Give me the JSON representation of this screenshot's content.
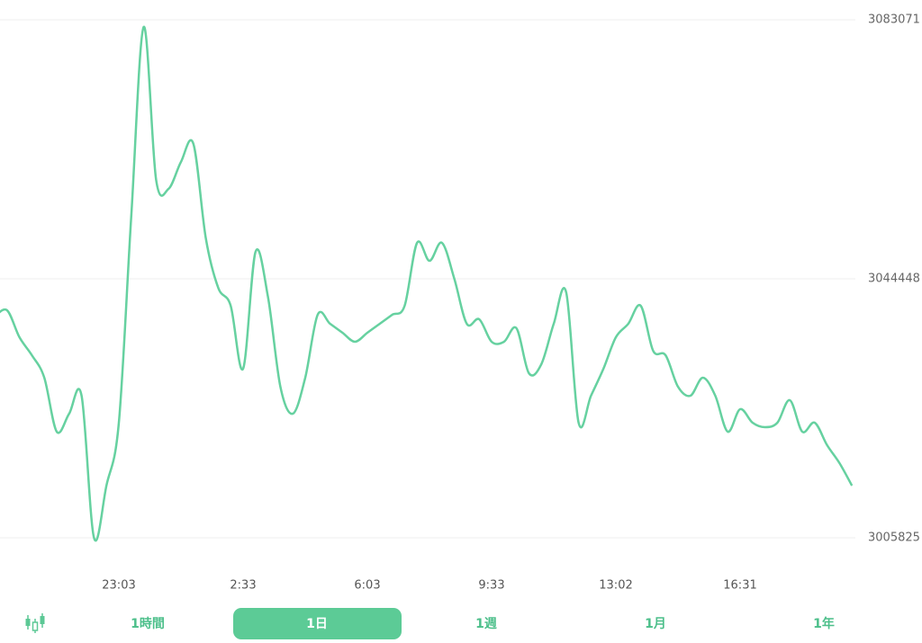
{
  "chart_data": {
    "type": "line",
    "categories": [
      null,
      null,
      null,
      null,
      null,
      null,
      null,
      null,
      null,
      null,
      "23:03",
      null,
      null,
      null,
      null,
      null,
      null,
      null,
      null,
      null,
      "2:33",
      null,
      null,
      null,
      null,
      null,
      null,
      null,
      null,
      null,
      "6:03",
      null,
      null,
      null,
      null,
      null,
      null,
      null,
      null,
      null,
      "9:33",
      null,
      null,
      null,
      null,
      null,
      null,
      null,
      null,
      null,
      "13:02",
      null,
      null,
      null,
      null,
      null,
      null,
      null,
      null,
      null,
      "16:31",
      null,
      null,
      null,
      null,
      null,
      null,
      null,
      null,
      null
    ],
    "values": [
      3038815,
      3039753,
      3035730,
      3033048,
      3029695,
      3021649,
      3024331,
      3027013,
      3005825,
      3013602,
      3022990,
      3053835,
      3081998,
      3059199,
      3057858,
      3061882,
      3064564,
      3050482,
      3043106,
      3040424,
      3031036,
      3048471,
      3041765,
      3028354,
      3024331,
      3029695,
      3039083,
      3037742,
      3036401,
      3035060,
      3036401,
      3037742,
      3039083,
      3040424,
      3049812,
      3047130,
      3049812,
      3044447,
      3037742,
      3038412,
      3035060,
      3035060,
      3037071,
      3030366,
      3031707,
      3037742,
      3042436,
      3022990,
      3027013,
      3031036,
      3035730,
      3037742,
      3040424,
      3033719,
      3033048,
      3028354,
      3027013,
      3029695,
      3027013,
      3021649,
      3025001,
      3022990,
      3022319,
      3022990,
      3026343,
      3021649,
      3022990,
      3019637,
      3016955,
      3013602
    ],
    "color": "#66d1a0",
    "ylim": [
      3005825,
      3083071
    ],
    "yticks": [
      3005825,
      3044448,
      3083071
    ],
    "grid": true
  },
  "controls": {
    "range_tabs": [
      "1時間",
      "1日",
      "1週",
      "1月",
      "1年"
    ],
    "selected_tab": 1
  }
}
